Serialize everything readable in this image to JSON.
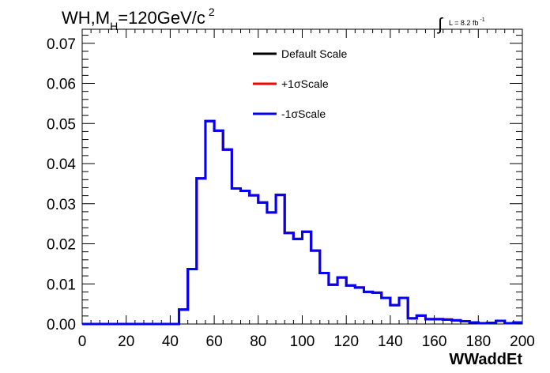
{
  "chart_data": {
    "type": "line",
    "title": {
      "prefix": "WH,M",
      "subscript": "H",
      "main": "=120GeV/c",
      "superscript": "2"
    },
    "luminosity": {
      "integral": "∫",
      "label": "L = 8.2 fb",
      "exponent": "-1"
    },
    "xlabel": "WWaddEt",
    "ylabel": "",
    "xlim": [
      0,
      200
    ],
    "ylim": [
      0,
      0.0735
    ],
    "x_ticks": [
      "0",
      "20",
      "40",
      "60",
      "80",
      "100",
      "120",
      "140",
      "160",
      "180",
      "200"
    ],
    "y_ticks": [
      "0.00",
      "0.01",
      "0.02",
      "0.03",
      "0.04",
      "0.05",
      "0.06",
      "0.07"
    ],
    "legend_position": "top-center",
    "bin_width": 4,
    "series": [
      {
        "name": "Default Scale",
        "color": "#000000",
        "values": [
          0,
          0,
          0,
          0,
          0,
          0,
          0,
          0,
          0,
          0,
          0,
          0.0036,
          0.0137,
          0.0363,
          0.0506,
          0.0482,
          0.0435,
          0.0338,
          0.0332,
          0.0321,
          0.0303,
          0.0278,
          0.0322,
          0.0227,
          0.0212,
          0.023,
          0.0183,
          0.0127,
          0.0098,
          0.0116,
          0.0096,
          0.0091,
          0.008,
          0.0078,
          0.0065,
          0.0047,
          0.0065,
          0.0014,
          0.0021,
          0.0012,
          0.0012,
          0.0011,
          0.0009,
          0.0007,
          0.0004,
          0.0002,
          0.0003,
          0.0008,
          0.0002,
          0.0004
        ]
      },
      {
        "name": "+1σScale",
        "color": "#ff0000",
        "values": [
          0,
          0,
          0,
          0,
          0,
          0,
          0,
          0,
          0,
          0,
          0,
          0.0036,
          0.0137,
          0.0363,
          0.0506,
          0.0482,
          0.0435,
          0.0338,
          0.0332,
          0.0321,
          0.0303,
          0.0278,
          0.0322,
          0.0227,
          0.0212,
          0.023,
          0.0183,
          0.0127,
          0.0098,
          0.0116,
          0.0096,
          0.0091,
          0.008,
          0.0078,
          0.0065,
          0.0047,
          0.0065,
          0.0014,
          0.0021,
          0.0012,
          0.0012,
          0.0011,
          0.0009,
          0.0007,
          0.0004,
          0.0002,
          0.0003,
          0.0008,
          0.0002,
          0.0004
        ]
      },
      {
        "name": "-1σScale",
        "color": "#0000ff",
        "values": [
          0,
          0,
          0,
          0,
          0,
          0,
          0,
          0,
          0,
          0,
          0,
          0.0036,
          0.0137,
          0.0363,
          0.0506,
          0.0482,
          0.0435,
          0.0338,
          0.0332,
          0.0321,
          0.0303,
          0.0278,
          0.0322,
          0.0227,
          0.0212,
          0.023,
          0.0183,
          0.0127,
          0.0098,
          0.0116,
          0.0096,
          0.0091,
          0.008,
          0.0078,
          0.0065,
          0.0047,
          0.0065,
          0.0014,
          0.0021,
          0.0012,
          0.0012,
          0.0011,
          0.0009,
          0.0007,
          0.0004,
          0.0002,
          0.0003,
          0.0008,
          0.0002,
          0.0004
        ]
      }
    ]
  }
}
